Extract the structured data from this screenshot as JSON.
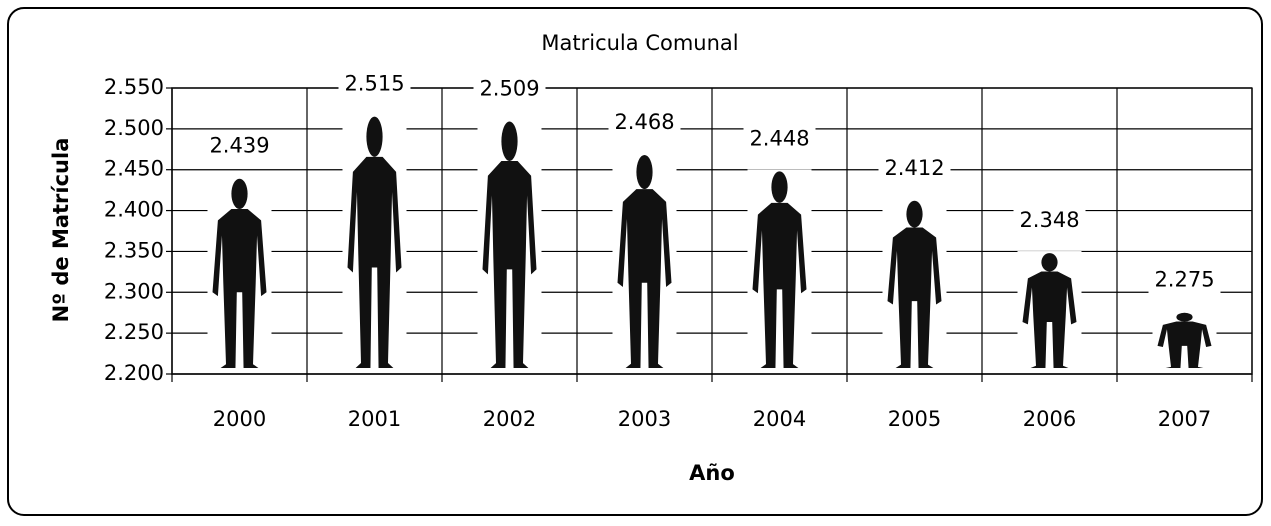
{
  "chart_data": {
    "type": "pictograph",
    "title": "Matricula Comunal",
    "x_label": "Año",
    "y_label": "Nº de Matrícula",
    "categories": [
      "2000",
      "2001",
      "2002",
      "2003",
      "2004",
      "2005",
      "2006",
      "2007"
    ],
    "values": [
      2439,
      2515,
      2509,
      2468,
      2448,
      2412,
      2348,
      2275
    ],
    "value_labels": [
      "2.439",
      "2.515",
      "2.509",
      "2.468",
      "2.448",
      "2.412",
      "2.348",
      "2.275"
    ],
    "color": "#111111",
    "ylim": [
      2200,
      2550
    ],
    "yticks": [
      {
        "value": 2200,
        "label": "2.200"
      },
      {
        "value": 2250,
        "label": "2.250"
      },
      {
        "value": 2300,
        "label": "2.300"
      },
      {
        "value": 2350,
        "label": "2.350"
      },
      {
        "value": 2400,
        "label": "2.400"
      },
      {
        "value": 2450,
        "label": "2.450"
      },
      {
        "value": 2500,
        "label": "2.500"
      },
      {
        "value": 2550,
        "label": "2.550"
      }
    ],
    "grid": true
  }
}
